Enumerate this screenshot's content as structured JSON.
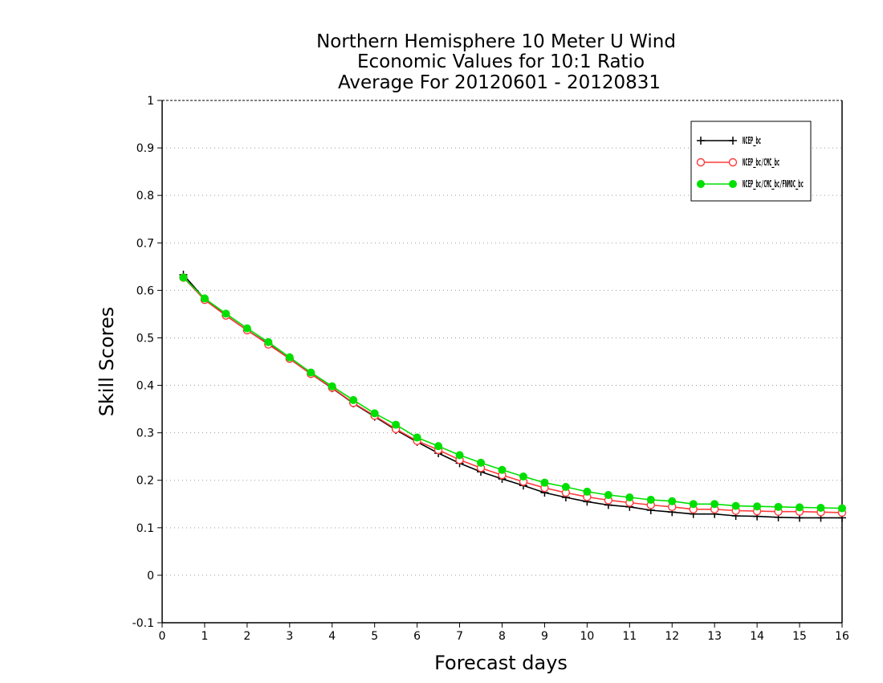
{
  "chart_data": {
    "type": "line",
    "title_lines": [
      "Northern Hemisphere 10 Meter U Wind",
      "Economic Values for 10:1 Ratio",
      "Average For 20120601 - 20120831"
    ],
    "xlabel": "Forecast days",
    "ylabel": "Skill Scores",
    "xlim": [
      0,
      16
    ],
    "ylim": [
      -0.1,
      1
    ],
    "x_ticks": [
      "0",
      "1",
      "2",
      "3",
      "4",
      "5",
      "6",
      "7",
      "8",
      "9",
      "10",
      "11",
      "12",
      "13",
      "14",
      "15",
      "16"
    ],
    "y_ticks": [
      "-0.1",
      "0",
      "0.1",
      "0.2",
      "0.3",
      "0.4",
      "0.5",
      "0.6",
      "0.7",
      "0.8",
      "0.9",
      "1"
    ],
    "grid": "horizontal dotted",
    "legend_position": "top-right",
    "x": [
      0.5,
      1,
      1.5,
      2,
      2.5,
      3,
      3.5,
      4,
      4.5,
      5,
      5.5,
      6,
      6.5,
      7,
      7.5,
      8,
      8.5,
      9,
      9.5,
      10,
      10.5,
      11,
      11.5,
      12,
      12.5,
      13,
      13.5,
      14,
      14.5,
      15,
      15.5,
      16
    ],
    "series": [
      {
        "name": "NCEP_bc",
        "color": "#000000",
        "marker": "plus",
        "values": [
          0.633,
          0.582,
          0.547,
          0.516,
          0.487,
          0.456,
          0.424,
          0.394,
          0.362,
          0.334,
          0.306,
          0.281,
          0.257,
          0.236,
          0.218,
          0.203,
          0.189,
          0.174,
          0.164,
          0.155,
          0.148,
          0.144,
          0.137,
          0.133,
          0.129,
          0.129,
          0.125,
          0.124,
          0.122,
          0.121,
          0.121,
          0.121
        ]
      },
      {
        "name": "NCEP_bc/CMC_bc",
        "color": "#ff3b3b",
        "marker": "open-circle",
        "values": [
          0.627,
          0.58,
          0.547,
          0.516,
          0.486,
          0.456,
          0.424,
          0.395,
          0.363,
          0.336,
          0.308,
          0.283,
          0.264,
          0.243,
          0.226,
          0.211,
          0.197,
          0.184,
          0.174,
          0.165,
          0.158,
          0.153,
          0.148,
          0.144,
          0.139,
          0.139,
          0.136,
          0.135,
          0.134,
          0.134,
          0.133,
          0.132
        ]
      },
      {
        "name": "NCEP_bc/CMC_bc/FNMOC_bc",
        "color": "#00e000",
        "marker": "filled-circle",
        "values": [
          0.627,
          0.583,
          0.551,
          0.52,
          0.491,
          0.459,
          0.427,
          0.398,
          0.369,
          0.341,
          0.317,
          0.29,
          0.272,
          0.253,
          0.237,
          0.222,
          0.208,
          0.195,
          0.186,
          0.176,
          0.169,
          0.164,
          0.159,
          0.156,
          0.15,
          0.15,
          0.146,
          0.145,
          0.144,
          0.143,
          0.142,
          0.141
        ]
      }
    ]
  }
}
